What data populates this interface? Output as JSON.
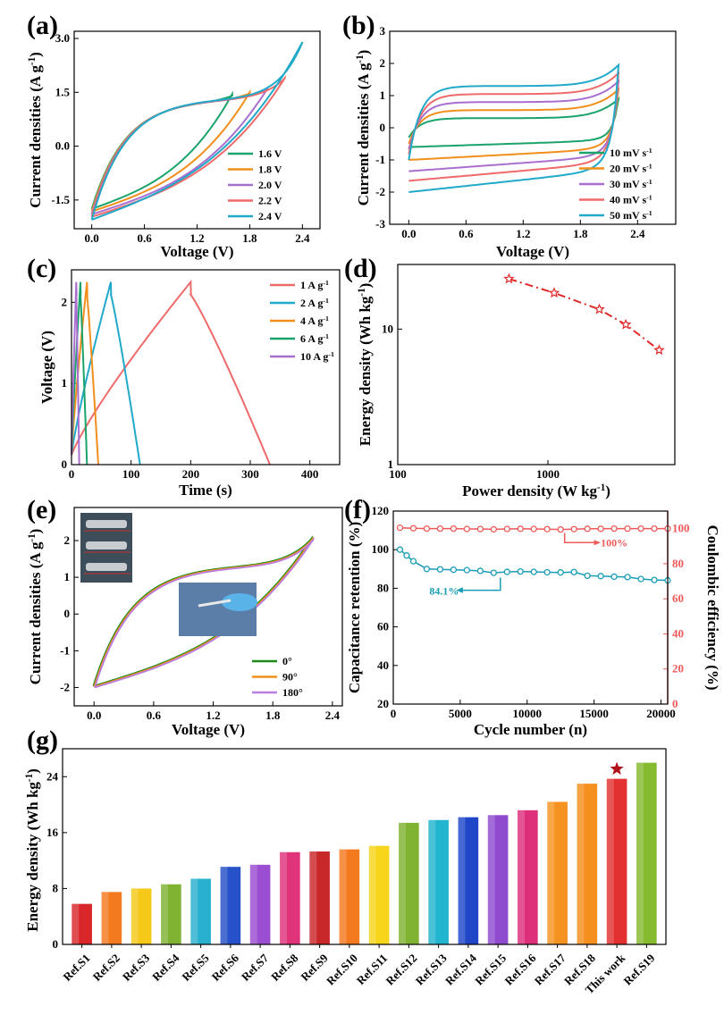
{
  "chart_data": [
    {
      "panel": "(a)",
      "type": "line",
      "xlabel": "Voltage (V)",
      "ylabel": "Current densities (A g",
      "ylabel_sup": "-1",
      "ylabel_end": ")",
      "xlim": [
        -0.2,
        2.6
      ],
      "ylim": [
        -2.3,
        3.2
      ],
      "xticks": [
        0.0,
        0.6,
        1.2,
        1.8,
        2.4
      ],
      "xtick_labels": [
        "0.0",
        "0.6",
        "1.2",
        "1.8",
        "2.4"
      ],
      "yticks": [
        -1.5,
        0.0,
        1.5,
        3.0
      ],
      "ytick_labels": [
        "-1.5",
        "0.0",
        "1.5",
        "3.0"
      ],
      "legend_position": "bottom-right",
      "series": [
        {
          "name": "1.6 V",
          "color": "#1aa36a",
          "vmax": 1.6,
          "imax": 1.45,
          "imin": -1.75
        },
        {
          "name": "1.8 V",
          "color": "#f28e1c",
          "vmax": 1.8,
          "imax": 1.5,
          "imin": -1.82
        },
        {
          "name": "2.0 V",
          "color": "#a86fcf",
          "vmax": 2.0,
          "imax": 1.6,
          "imin": -1.9
        },
        {
          "name": "2.2 V",
          "color": "#ef6a6a",
          "vmax": 2.2,
          "imax": 1.9,
          "imin": -1.97
        },
        {
          "name": "2.4 V",
          "color": "#21a9c9",
          "vmax": 2.4,
          "imax": 2.9,
          "imin": -2.05
        }
      ]
    },
    {
      "panel": "(b)",
      "type": "line",
      "xlabel": "Voltage (V)",
      "ylabel": "Current densities (A g",
      "ylabel_sup": "-1",
      "ylabel_end": ")",
      "xlim": [
        -0.2,
        2.8
      ],
      "ylim": [
        -3,
        3
      ],
      "xticks": [
        0.0,
        0.6,
        1.2,
        1.8,
        2.4
      ],
      "xtick_labels": [
        "0.0",
        "0.6",
        "1.2",
        "1.8",
        "2.4"
      ],
      "yticks": [
        -3,
        -2,
        -1,
        0,
        1,
        2,
        3
      ],
      "ytick_labels": [
        "-3",
        "-2",
        "-1",
        "0",
        "1",
        "2",
        "3"
      ],
      "legend_position": "bottom-right",
      "series": [
        {
          "name": "10 mV s",
          "sup": "-1",
          "color": "#1aa36a",
          "plateau": 0.3,
          "imax": 0.9,
          "imin": -0.6
        },
        {
          "name": "20 mV s",
          "sup": "-1",
          "color": "#f28e1c",
          "plateau": 0.55,
          "imax": 1.2,
          "imin": -1.0
        },
        {
          "name": "30 mV s",
          "sup": "-1",
          "color": "#a86fcf",
          "plateau": 0.8,
          "imax": 1.45,
          "imin": -1.35
        },
        {
          "name": "40 mV s",
          "sup": "-1",
          "color": "#ef6a6a",
          "plateau": 1.05,
          "imax": 1.7,
          "imin": -1.65
        },
        {
          "name": "50 mV s",
          "sup": "-1",
          "color": "#21a9c9",
          "plateau": 1.3,
          "imax": 1.95,
          "imin": -2.0
        }
      ]
    },
    {
      "panel": "(c)",
      "type": "line",
      "xlabel": "Time (s)",
      "ylabel": "Voltage (V)",
      "xlim": [
        0,
        450
      ],
      "ylim": [
        0,
        2.4
      ],
      "xticks": [
        0,
        100,
        200,
        300,
        400
      ],
      "xtick_labels": [
        "0",
        "100",
        "200",
        "300",
        "400"
      ],
      "yticks": [
        0,
        1,
        2
      ],
      "ytick_labels": [
        "0",
        "1",
        "2"
      ],
      "legend_position": "top-right",
      "series": [
        {
          "name": "1 A g",
          "sup": "-1",
          "color": "#ef6a6a",
          "tc": 200,
          "td": 333
        },
        {
          "name": "2 A g",
          "sup": "-1",
          "color": "#21a9c9",
          "tc": 66,
          "td": 115
        },
        {
          "name": "4 A g",
          "sup": "-1",
          "color": "#f28e1c",
          "tc": 26,
          "td": 45
        },
        {
          "name": "6 A g",
          "sup": "-1",
          "color": "#1aa36a",
          "tc": 15,
          "td": 26
        },
        {
          "name": "10 A g",
          "sup": "-1",
          "color": "#a86fcf",
          "tc": 8,
          "td": 13
        }
      ]
    },
    {
      "panel": "(d)",
      "type": "line",
      "xlabel": "Power density (W kg",
      "xlabel_sup": "-1",
      "xlabel_end": ")",
      "ylabel": "Energy density (Wh kg",
      "ylabel_sup": "-1",
      "ylabel_end": ")",
      "xscale": "log",
      "yscale": "log",
      "xlim": [
        100,
        7000
      ],
      "ylim": [
        1,
        30
      ],
      "xticks": [
        100,
        1000
      ],
      "xtick_labels": [
        "100",
        "1000"
      ],
      "yticks": [
        1,
        10
      ],
      "ytick_labels": [
        "1",
        "10"
      ],
      "color": "#e02a2a",
      "x": [
        550,
        1100,
        2200,
        3300,
        5500
      ],
      "y": [
        23.5,
        18.5,
        14.0,
        10.8,
        7.0
      ]
    },
    {
      "panel": "(e)",
      "type": "line",
      "xlabel": "Voltage (V)",
      "ylabel": "Current densities (A g",
      "ylabel_sup": "-1",
      "ylabel_end": ")",
      "xlim": [
        -0.2,
        2.5
      ],
      "ylim": [
        -2.5,
        2.9
      ],
      "xticks": [
        0.0,
        0.6,
        1.2,
        1.8,
        2.4
      ],
      "xtick_labels": [
        "0.0",
        "0.6",
        "1.2",
        "1.8",
        "2.4"
      ],
      "yticks": [
        -2,
        -1,
        0,
        1,
        2
      ],
      "ytick_labels": [
        "-2",
        "-1",
        "0",
        "1",
        "2"
      ],
      "legend_position": "bottom-right",
      "series": [
        {
          "name": "0°",
          "color": "#1a8a1a",
          "vmax": 2.2,
          "imax": 2.05,
          "imin": -1.98
        },
        {
          "name": "90°",
          "color": "#f28e1c",
          "vmax": 2.2,
          "imax": 2.05,
          "imin": -1.98
        },
        {
          "name": "180°",
          "color": "#b97de0",
          "vmax": 2.2,
          "imax": 2.05,
          "imin": -1.98
        }
      ]
    },
    {
      "panel": "(f)",
      "type": "line",
      "xlabel": "Cycle number (n)",
      "ylabel": "Capacitance retention (%)",
      "y2label": "Coulombic efficiency (%)",
      "xlim": [
        0,
        20500
      ],
      "ylim": [
        20,
        120
      ],
      "y2lim": [
        0,
        110
      ],
      "xticks": [
        0,
        5000,
        10000,
        15000,
        20000
      ],
      "xtick_labels": [
        "0",
        "5000",
        "10000",
        "15000",
        "20000"
      ],
      "yticks": [
        20,
        40,
        60,
        80,
        100,
        120
      ],
      "ytick_labels": [
        "20",
        "40",
        "60",
        "80",
        "100",
        "120"
      ],
      "y2ticks": [
        0,
        20,
        40,
        60,
        80,
        100
      ],
      "y2tick_labels": [
        "0",
        "20",
        "40",
        "60",
        "80",
        "100"
      ],
      "annotations": [
        "84.1%",
        "100%"
      ],
      "series": [
        {
          "axis": "left",
          "color": "#1a9db5",
          "x": [
            500,
            1000,
            1500,
            2500,
            3500,
            4500,
            5500,
            6500,
            7500,
            8500,
            9500,
            10500,
            11500,
            12500,
            13500,
            14500,
            15500,
            16500,
            17500,
            18500,
            19500,
            20500
          ],
          "y": [
            100,
            97,
            94,
            90,
            89.8,
            89.6,
            89.4,
            89,
            88,
            88.5,
            88.7,
            88.5,
            88.3,
            88.2,
            88.4,
            86.5,
            86.3,
            86.0,
            85.8,
            84.8,
            84.3,
            84.1
          ]
        },
        {
          "axis": "right",
          "color": "#ef5a5a",
          "x": [
            500,
            1500,
            2500,
            3500,
            4500,
            5500,
            6500,
            7500,
            8500,
            9500,
            10500,
            11500,
            12500,
            13500,
            14500,
            15500,
            16500,
            17500,
            18500,
            19500,
            20500
          ],
          "y": [
            100.5,
            100.2,
            100,
            100,
            100,
            99.8,
            99.8,
            99.6,
            99.8,
            99.9,
            99.8,
            99.7,
            99.5,
            99.7,
            99.9,
            99.9,
            100,
            100,
            100,
            100,
            100
          ]
        }
      ]
    },
    {
      "panel": "(g)",
      "type": "bar",
      "ylabel": "Energy density (Wh kg",
      "ylabel_sup": "-1",
      "ylabel_end": ")",
      "ylim": [
        0,
        28
      ],
      "yticks": [
        0,
        8,
        16,
        24
      ],
      "ytick_labels": [
        "0",
        "8",
        "16",
        "24"
      ],
      "categories": [
        "Ref.S1",
        "Ref.S2",
        "Ref.S3",
        "Ref.S4",
        "Ref.S5",
        "Ref.S6",
        "Ref.S7",
        "Ref.S8",
        "Ref.S9",
        "Ref.S10",
        "Ref.S11",
        "Ref.S12",
        "Ref.S13",
        "Ref.S14",
        "Ref.S15",
        "Ref.S16",
        "Ref.S17",
        "Ref.S18",
        "This work",
        "Ref.S19"
      ],
      "values": [
        5.8,
        7.5,
        8.0,
        8.6,
        9.4,
        11.1,
        11.4,
        13.2,
        13.3,
        13.6,
        14.1,
        17.4,
        17.8,
        18.2,
        18.5,
        19.2,
        20.4,
        23.0,
        23.7,
        26.0
      ],
      "colors": [
        "#d8262a",
        "#f47a1f",
        "#f6c817",
        "#7fb331",
        "#2ab0cf",
        "#2551c9",
        "#9b4ed1",
        "#e0337a",
        "#c8282a",
        "#f47a1f",
        "#f6d51b",
        "#7fb331",
        "#22b5cf",
        "#1f47c8",
        "#8e4bd0",
        "#de2f7a",
        "#f69320",
        "#f58f1e",
        "#e33030",
        "#86ba2f"
      ],
      "highlight": "This work"
    }
  ]
}
